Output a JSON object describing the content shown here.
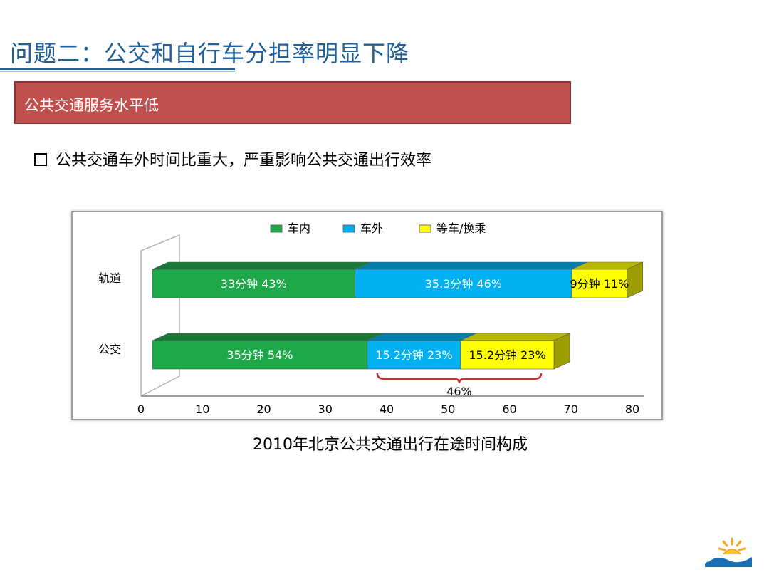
{
  "slide": {
    "title": "问题二：公交和自行车分担率明显下降",
    "section_label": "公共交通服务水平低",
    "bullet": "公共交通车外时间比重大，严重影响公共交通出行效率",
    "caption": "2010年北京公共交通出行在途时间构成"
  },
  "chart_data": {
    "type": "bar",
    "orientation": "horizontal",
    "stacked": true,
    "categories": [
      "轨道",
      "公交"
    ],
    "series": [
      {
        "name": "车内",
        "values": [
          33,
          35
        ],
        "labels": [
          "33分钟 43%",
          "35分钟 54%"
        ],
        "color": "#1fa84a"
      },
      {
        "name": "车外",
        "values": [
          35.3,
          15.2
        ],
        "labels": [
          "35.3分钟 46%",
          "15.2分钟 23%"
        ],
        "color": "#00b0f0"
      },
      {
        "name": "等车/换乘",
        "values": [
          9,
          15.2
        ],
        "labels": [
          "9分钟 11%",
          "15.2分钟 23%"
        ],
        "color": "#ffff00"
      }
    ],
    "xticks": [
      0,
      10,
      20,
      30,
      40,
      50,
      60,
      70,
      80
    ],
    "xlim": [
      0,
      80
    ],
    "legend_position": "top",
    "annotation": {
      "text": "46%",
      "category": "公交",
      "spans_series": [
        "车外",
        "等车/换乘"
      ]
    }
  }
}
